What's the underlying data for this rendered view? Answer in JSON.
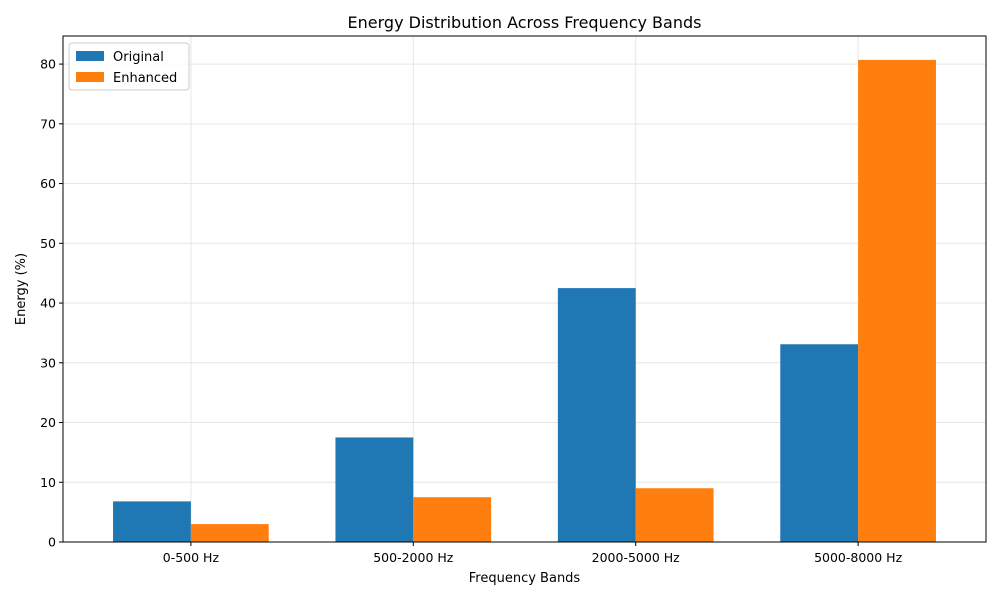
{
  "chart_data": {
    "type": "bar",
    "title": "Energy Distribution Across Frequency Bands",
    "xlabel": "Frequency Bands",
    "ylabel": "Energy (%)",
    "categories": [
      "0-500 Hz",
      "500-2000 Hz",
      "2000-5000 Hz",
      "5000-8000 Hz"
    ],
    "series": [
      {
        "name": "Original",
        "values": [
          6.8,
          17.5,
          42.5,
          33.1
        ],
        "color": "#1f77b4"
      },
      {
        "name": "Enhanced",
        "values": [
          3.0,
          7.5,
          9.0,
          80.7
        ],
        "color": "#ff7f0e"
      }
    ],
    "ylim": [
      0,
      84.7
    ],
    "yticks": [
      0,
      10,
      20,
      30,
      40,
      50,
      60,
      70,
      80
    ],
    "grid": true,
    "legend_position": "top-left"
  }
}
